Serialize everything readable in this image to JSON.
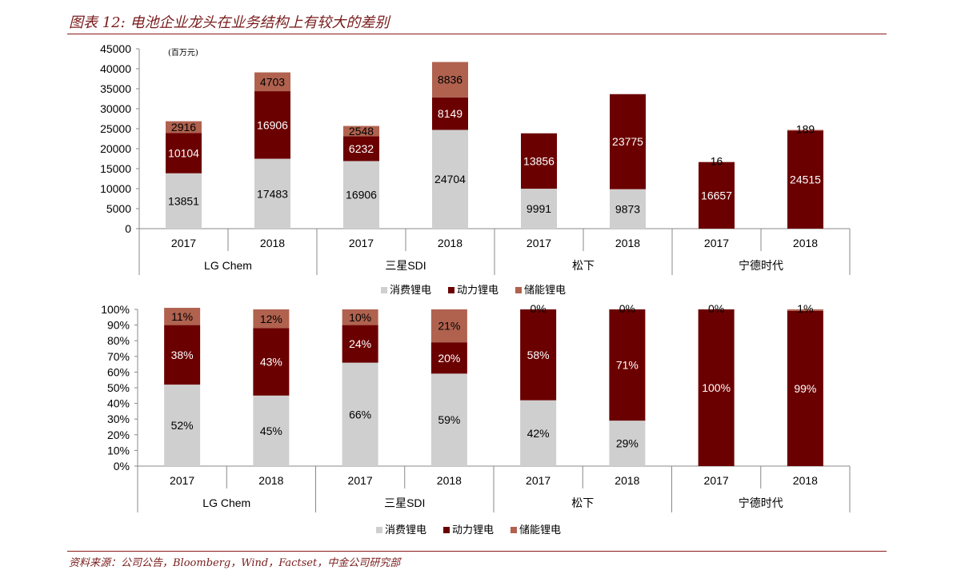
{
  "title": "图表 12: 电池企业龙头在业务结构上有较大的差别",
  "source": "资料来源：公司公告，Bloomberg，Wind，Factset，中金公司研究部",
  "colors": {
    "consumer": "#cfcfcf",
    "power": "#6b0000",
    "storage": "#b0624f",
    "rule": "#8b1a1a"
  },
  "chart_data": [
    {
      "type": "bar",
      "stacked": true,
      "unit_label": "(百万元)",
      "groups": [
        "LG Chem",
        "三星SDI",
        "松下",
        "宁德时代"
      ],
      "categories": [
        "2017",
        "2018",
        "2017",
        "2018",
        "2017",
        "2018",
        "2017",
        "2018"
      ],
      "ylim": [
        0,
        45000
      ],
      "yticks": [
        "0",
        "5000",
        "10000",
        "15000",
        "20000",
        "25000",
        "30000",
        "35000",
        "40000",
        "45000"
      ],
      "series": [
        {
          "name": "消费锂电",
          "values": [
            13851,
            17483,
            16906,
            24704,
            9991,
            9873,
            0,
            0
          ],
          "labels": [
            "13851",
            "17483",
            "16906",
            "24704",
            "9991",
            "9873",
            "",
            ""
          ]
        },
        {
          "name": "动力锂电",
          "values": [
            10104,
            16906,
            6232,
            8149,
            13856,
            23775,
            16657,
            24515
          ],
          "labels": [
            "10104",
            "16906",
            "6232",
            "8149",
            "13856",
            "23775",
            "16657",
            "24515"
          ]
        },
        {
          "name": "储能锂电",
          "values": [
            2916,
            4703,
            2548,
            8836,
            0,
            0,
            16,
            189
          ],
          "labels": [
            "2916",
            "4703",
            "2548",
            "8836",
            "",
            "",
            "16",
            "189"
          ]
        }
      ],
      "legend": "bottom"
    },
    {
      "type": "bar",
      "stacked": true,
      "percent": true,
      "groups": [
        "LG Chem",
        "三星SDI",
        "松下",
        "宁德时代"
      ],
      "categories": [
        "2017",
        "2018",
        "2017",
        "2018",
        "2017",
        "2018",
        "2017",
        "2018"
      ],
      "ylim": [
        0,
        100
      ],
      "yticks": [
        "0%",
        "10%",
        "20%",
        "30%",
        "40%",
        "50%",
        "60%",
        "70%",
        "80%",
        "90%",
        "100%"
      ],
      "series": [
        {
          "name": "消费锂电",
          "values": [
            52,
            45,
            66,
            59,
            42,
            29,
            0,
            0
          ],
          "labels": [
            "52%",
            "45%",
            "66%",
            "59%",
            "42%",
            "29%",
            "",
            ""
          ]
        },
        {
          "name": "动力锂电",
          "values": [
            38,
            43,
            24,
            20,
            58,
            71,
            100,
            99
          ],
          "labels": [
            "38%",
            "43%",
            "24%",
            "20%",
            "58%",
            "71%",
            "100%",
            "99%"
          ]
        },
        {
          "name": "储能锂电",
          "values": [
            11,
            12,
            10,
            21,
            0,
            0,
            0,
            1
          ],
          "labels": [
            "11%",
            "12%",
            "10%",
            "21%",
            "0%",
            "0%",
            "0%",
            "1%"
          ]
        }
      ],
      "legend": "bottom"
    }
  ]
}
